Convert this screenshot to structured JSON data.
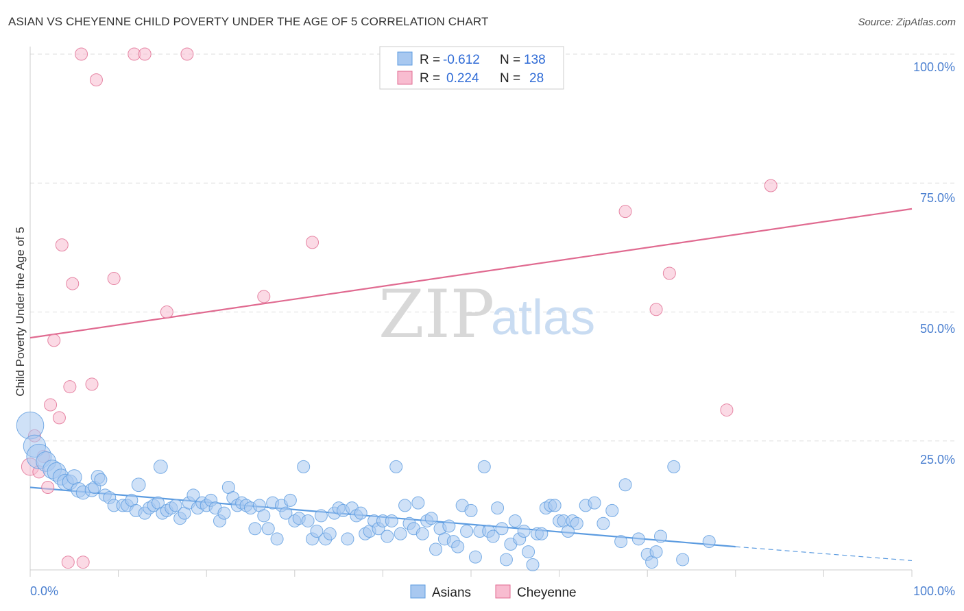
{
  "header": {
    "title": "ASIAN VS CHEYENNE CHILD POVERTY UNDER THE AGE OF 5 CORRELATION CHART",
    "source": "Source: ZipAtlas.com"
  },
  "watermark": {
    "zip": "ZIP",
    "atlas": "atlas"
  },
  "legend": {
    "rows": [
      {
        "r_label": "R =",
        "r_value": "-0.612",
        "n_label": "N =",
        "n_value": "138",
        "color": "#a8c8f0"
      },
      {
        "r_label": "R =",
        "r_value": "0.224",
        "n_label": "N =",
        "n_value": "28",
        "color": "#f8bcd0"
      }
    ]
  },
  "bottom_legend": {
    "asians": "Asians",
    "cheyenne": "Cheyenne"
  },
  "axes": {
    "ylabel": "Child Poverty Under the Age of 5",
    "x_tick_left": "0.0%",
    "x_tick_right": "100.0%",
    "y_ticks": [
      "100.0%",
      "75.0%",
      "50.0%",
      "25.0%"
    ]
  },
  "chart_data": {
    "type": "scatter",
    "title": "ASIAN VS CHEYENNE CHILD POVERTY UNDER THE AGE OF 5 CORRELATION CHART",
    "xlabel": "",
    "ylabel": "Child Poverty Under the Age of 5",
    "xlim": [
      0,
      100
    ],
    "ylim": [
      0,
      100
    ],
    "grid": true,
    "legend_position": "top-center",
    "series": [
      {
        "name": "Asians",
        "color": "#5b9be0",
        "fill": "#a8c8f0",
        "r": -0.612,
        "n": 138,
        "trend": {
          "x0": 0,
          "y0": 16.0,
          "x1": 80,
          "y1": 4.5,
          "dash_to_x": 100,
          "dash_to_y": 1.8
        },
        "points": [
          [
            0,
            28,
            2.2
          ],
          [
            0.5,
            24,
            1.8
          ],
          [
            1,
            22,
            2
          ],
          [
            1.8,
            21,
            1.6
          ],
          [
            2.5,
            19.5,
            1.5
          ],
          [
            3,
            19,
            1.5
          ],
          [
            3.5,
            18,
            1.3
          ],
          [
            4,
            17,
            1.3
          ],
          [
            4.5,
            17,
            1.2
          ],
          [
            5,
            18,
            1.2
          ],
          [
            5.5,
            15.5,
            1.2
          ],
          [
            6,
            15,
            1.1
          ],
          [
            7,
            15.5,
            1.1
          ],
          [
            7.3,
            16,
            1
          ],
          [
            7.7,
            18,
            1.1
          ],
          [
            8,
            17.5,
            1
          ],
          [
            8.5,
            14.5,
            1
          ],
          [
            9,
            14,
            1
          ],
          [
            9.5,
            12.5,
            1
          ],
          [
            10.5,
            12.5,
            1
          ],
          [
            11,
            12.5,
            1
          ],
          [
            11.5,
            13.5,
            1
          ],
          [
            12,
            11.5,
            1
          ],
          [
            12.3,
            16.5,
            1.1
          ],
          [
            13,
            11,
            1
          ],
          [
            13.5,
            12,
            1
          ],
          [
            14,
            12.5,
            1
          ],
          [
            14.5,
            13,
            1
          ],
          [
            14.8,
            20,
            1.1
          ],
          [
            15,
            11,
            1
          ],
          [
            15.5,
            11.5,
            1
          ],
          [
            16,
            12,
            1
          ],
          [
            16.5,
            12.5,
            1
          ],
          [
            17,
            10,
            1
          ],
          [
            17.5,
            11,
            1
          ],
          [
            18,
            13,
            1
          ],
          [
            18.5,
            14.5,
            1
          ],
          [
            19,
            12,
            1
          ],
          [
            19.5,
            13,
            1
          ],
          [
            20,
            12.5,
            1
          ],
          [
            20.5,
            13.5,
            1
          ],
          [
            21,
            12,
            1
          ],
          [
            21.5,
            9.5,
            1
          ],
          [
            22,
            11,
            1
          ],
          [
            22.5,
            16,
            1
          ],
          [
            23,
            14,
            1
          ],
          [
            23.5,
            12.5,
            1
          ],
          [
            24,
            13,
            1
          ],
          [
            24.5,
            12.5,
            1
          ],
          [
            25,
            12,
            1
          ],
          [
            25.5,
            8,
            1
          ],
          [
            26,
            12.5,
            1
          ],
          [
            26.5,
            10.5,
            1
          ],
          [
            27,
            8,
            1
          ],
          [
            27.5,
            13,
            1
          ],
          [
            28,
            6,
            1
          ],
          [
            28.5,
            12.5,
            1
          ],
          [
            29,
            11,
            1
          ],
          [
            29.5,
            13.5,
            1
          ],
          [
            30,
            9.5,
            1
          ],
          [
            30.5,
            10,
            1
          ],
          [
            31,
            20,
            1
          ],
          [
            31.5,
            9.5,
            1
          ],
          [
            32,
            6,
            1
          ],
          [
            32.5,
            7.5,
            1
          ],
          [
            33,
            10.5,
            1
          ],
          [
            33.5,
            6,
            1
          ],
          [
            34,
            7,
            1
          ],
          [
            34.5,
            11,
            1
          ],
          [
            35,
            12,
            1
          ],
          [
            35.5,
            11.5,
            1
          ],
          [
            36,
            6,
            1
          ],
          [
            36.5,
            12,
            1
          ],
          [
            37,
            10.5,
            1
          ],
          [
            37.5,
            11,
            1
          ],
          [
            38,
            7,
            1
          ],
          [
            38.5,
            7.5,
            1
          ],
          [
            39,
            9.5,
            1
          ],
          [
            39.5,
            8,
            1
          ],
          [
            40,
            9.5,
            1
          ],
          [
            40.5,
            6.5,
            1
          ],
          [
            41,
            9.5,
            1
          ],
          [
            41.5,
            20,
            1
          ],
          [
            42,
            7,
            1
          ],
          [
            42.5,
            12.5,
            1
          ],
          [
            43,
            9,
            1
          ],
          [
            43.5,
            8,
            1
          ],
          [
            44,
            13,
            1
          ],
          [
            44.5,
            7,
            1
          ],
          [
            45,
            9.5,
            1
          ],
          [
            45.5,
            10,
            1
          ],
          [
            46,
            4,
            1
          ],
          [
            46.5,
            8,
            1
          ],
          [
            47,
            6,
            1
          ],
          [
            47.5,
            8.5,
            1
          ],
          [
            48,
            5.5,
            1
          ],
          [
            48.5,
            4.5,
            1
          ],
          [
            49,
            12.5,
            1
          ],
          [
            49.5,
            7.5,
            1
          ],
          [
            50,
            11.5,
            1
          ],
          [
            50.5,
            2.5,
            1
          ],
          [
            51,
            7.5,
            1
          ],
          [
            51.5,
            20,
            1
          ],
          [
            52,
            7.5,
            1
          ],
          [
            52.5,
            6.5,
            1
          ],
          [
            53,
            12,
            1
          ],
          [
            53.5,
            8,
            1
          ],
          [
            54,
            2,
            1
          ],
          [
            54.5,
            5,
            1
          ],
          [
            55,
            9.5,
            1
          ],
          [
            55.5,
            6,
            1
          ],
          [
            56,
            7.5,
            1
          ],
          [
            56.5,
            3.5,
            1
          ],
          [
            57,
            1,
            1
          ],
          [
            57.5,
            7,
            1
          ],
          [
            58,
            7,
            1
          ],
          [
            58.5,
            12,
            1
          ],
          [
            59,
            12.5,
            1
          ],
          [
            59.5,
            12.5,
            1
          ],
          [
            60,
            9.5,
            1
          ],
          [
            60.5,
            9.5,
            1
          ],
          [
            61,
            7.5,
            1
          ],
          [
            61.5,
            9.5,
            1
          ],
          [
            62,
            9,
            1
          ],
          [
            63,
            12.5,
            1
          ],
          [
            64,
            13,
            1
          ],
          [
            65,
            9,
            1
          ],
          [
            66,
            11.5,
            1
          ],
          [
            67,
            5.5,
            1
          ],
          [
            67.5,
            16.5,
            1
          ],
          [
            69,
            6,
            1
          ],
          [
            70,
            3,
            1
          ],
          [
            70.5,
            1.5,
            1
          ],
          [
            71,
            3.5,
            1
          ],
          [
            71.5,
            6.5,
            1
          ],
          [
            73,
            20,
            1
          ],
          [
            74,
            2,
            1
          ],
          [
            77,
            5.5,
            1
          ]
        ]
      },
      {
        "name": "Cheyenne",
        "color": "#e06a90",
        "fill": "#f8bcd0",
        "r": 0.224,
        "n": 28,
        "trend": {
          "x0": 0,
          "y0": 45.0,
          "x1": 100,
          "y1": 70.0
        },
        "points": [
          [
            0,
            20,
            1.4
          ],
          [
            0.5,
            26,
            1
          ],
          [
            1,
            19,
            1
          ],
          [
            1.5,
            22,
            1
          ],
          [
            2,
            16,
            1
          ],
          [
            2.3,
            32,
            1
          ],
          [
            2.7,
            44.5,
            1
          ],
          [
            3.3,
            29.5,
            1
          ],
          [
            3.6,
            63,
            1
          ],
          [
            4.3,
            1.5,
            1
          ],
          [
            4.5,
            35.5,
            1
          ],
          [
            4.8,
            55.5,
            1
          ],
          [
            5.8,
            100,
            1
          ],
          [
            6,
            1.5,
            1
          ],
          [
            7,
            36,
            1
          ],
          [
            7.5,
            95,
            1
          ],
          [
            9.5,
            56.5,
            1
          ],
          [
            11.8,
            100,
            1
          ],
          [
            13,
            100,
            1
          ],
          [
            15.5,
            50,
            1
          ],
          [
            17.8,
            100,
            1
          ],
          [
            26.5,
            53,
            1
          ],
          [
            32,
            63.5,
            1
          ],
          [
            67.5,
            69.5,
            1
          ],
          [
            71,
            50.5,
            1
          ],
          [
            72.5,
            57.5,
            1
          ],
          [
            79,
            31,
            1
          ],
          [
            84,
            74.5,
            1
          ]
        ]
      }
    ]
  }
}
